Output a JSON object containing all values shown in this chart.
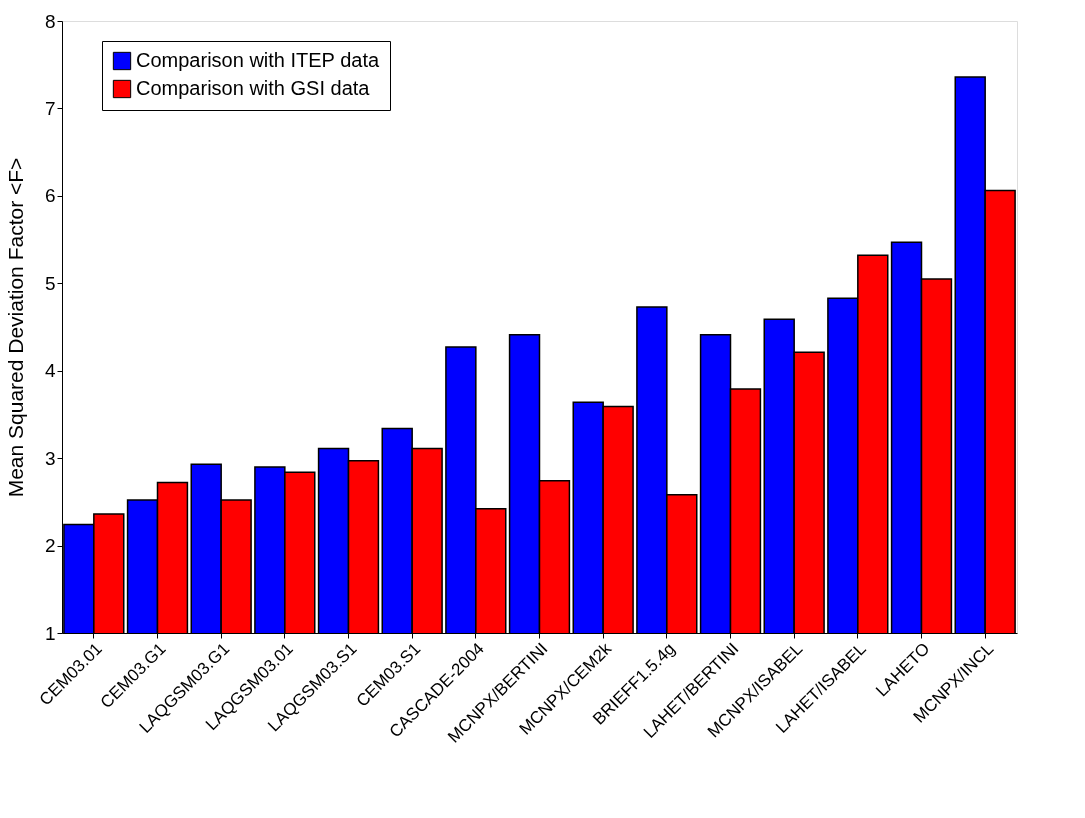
{
  "chart_data": {
    "type": "bar",
    "ylabel": "Mean Squared Deviation Factor <F>",
    "categories": [
      "CEM03.01",
      "CEM03.G1",
      "LAQGSM03.G1",
      "LAQGSM03.01",
      "LAQGSM03.S1",
      "CEM03.S1",
      "CASCADE-2004",
      "MCNPX/BERTINI",
      "MCNPX/CEM2k",
      "BRIEFF1.5.4g",
      "LAHET/BERTINI",
      "MCNPX/ISABEL",
      "LAHET/ISABEL",
      "LAHETO",
      "MCNPX/INCL"
    ],
    "series": [
      {
        "name": "Comparison with ITEP data",
        "color": "#0000ff",
        "values": [
          2.24,
          2.52,
          2.93,
          2.9,
          3.11,
          3.34,
          4.27,
          4.41,
          3.64,
          4.73,
          4.41,
          4.59,
          4.83,
          5.47,
          7.36
        ]
      },
      {
        "name": "Comparison with GSI data",
        "color": "#ff0000",
        "values": [
          2.36,
          2.72,
          2.52,
          2.84,
          2.97,
          3.11,
          2.42,
          2.74,
          3.59,
          2.58,
          3.79,
          4.21,
          5.32,
          5.05,
          6.06
        ]
      }
    ],
    "ylim": [
      1,
      8
    ],
    "yticks": [
      1,
      2,
      3,
      4,
      5,
      6,
      7,
      8
    ],
    "grid": false,
    "legend": "top left"
  }
}
